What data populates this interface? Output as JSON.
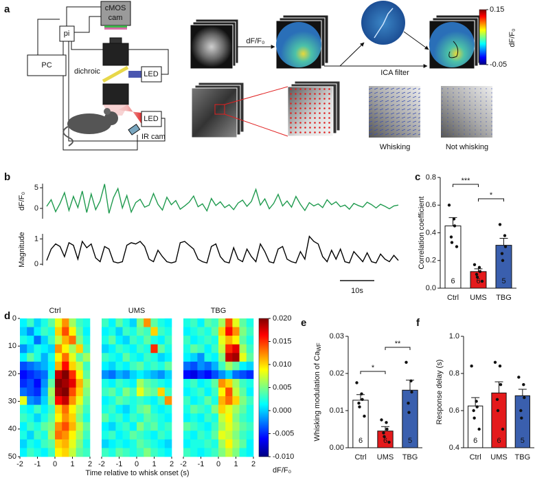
{
  "panel_labels": [
    "a",
    "b",
    "c",
    "d",
    "e",
    "f"
  ],
  "setup": {
    "pc": "PC",
    "pi": "pi",
    "camera_lines": [
      "cMOS",
      "cam"
    ],
    "dichroic": "dichroic",
    "led_blue": "LED",
    "led_red": "LED",
    "ir_camera": "IR cam"
  },
  "pipeline": {
    "df_label": "dF/F₀",
    "ica_label": "ICA filter",
    "whisking": "Whisking",
    "not_whisking": "Not whisking",
    "colorbar": {
      "lim": [
        -0.05,
        0.15
      ],
      "ticks": [
        0.15,
        -0.05
      ],
      "label": "dF/F₀"
    }
  },
  "chart_data": [
    {
      "type": "line",
      "ylabel": "dF/F₀",
      "color": "#1f9a4e",
      "ylim": [
        -2.5,
        6
      ],
      "yticks": [
        0,
        5
      ],
      "values": [
        0.5,
        2.1,
        -0.8,
        1.2,
        3.8,
        -0.5,
        2.9,
        0.2,
        4.2,
        -1.0,
        3.5,
        -0.3,
        1.8,
        5.9,
        -1.2,
        2.6,
        4.8,
        0.1,
        3.1,
        -0.9,
        1.4,
        2.2,
        0.3,
        0.8,
        3.6,
        1.0,
        -0.4,
        2.7,
        0.9,
        1.9,
        -0.2,
        0.6,
        1.5,
        3.0,
        0.4,
        1.1,
        -0.6,
        2.4,
        0.7,
        1.6,
        0.2,
        0.9,
        -0.3,
        1.3,
        2.0,
        0.5,
        1.7,
        4.6,
        0.8,
        2.3,
        -0.1,
        1.2,
        3.4,
        0.6,
        1.8,
        0.3,
        2.9,
        1.0,
        -0.5,
        1.4,
        0.6,
        1.1,
        0.2,
        2.1,
        0.9,
        1.6,
        0.4,
        0.8,
        -0.2,
        1.2,
        0.7,
        0.3,
        1.5,
        0.9,
        0.1,
        1.0,
        0.5,
        -0.1,
        0.6,
        0.8
      ]
    },
    {
      "type": "line",
      "ylabel": "Magnitude",
      "color": "#000000",
      "ylim": [
        -0.05,
        1.2
      ],
      "yticks": [
        0,
        1
      ],
      "scale_bar": "10s",
      "values": [
        0.15,
        0.6,
        0.8,
        0.7,
        0.3,
        0.85,
        0.75,
        0.2,
        0.9,
        0.65,
        0.8,
        0.25,
        0.1,
        0.7,
        0.6,
        0.1,
        0.05,
        0.1,
        0.75,
        0.85,
        0.8,
        0.9,
        0.7,
        0.2,
        0.1,
        0.55,
        0.3,
        0.1,
        0.05,
        0.1,
        0.85,
        0.9,
        0.75,
        0.6,
        0.2,
        0.1,
        0.05,
        0.7,
        0.8,
        0.3,
        0.1,
        0.05,
        0.65,
        0.2,
        0.1,
        0.6,
        0.3,
        0.1,
        0.8,
        0.5,
        0.1,
        0.05,
        0.6,
        0.7,
        0.2,
        0.1,
        0.05,
        0.5,
        0.2,
        1.1,
        0.9,
        0.8,
        0.3,
        0.1,
        0.55,
        0.2,
        0.6,
        0.1,
        0.05,
        0.5,
        0.3,
        0.1,
        0.45,
        0.1,
        0.05,
        0.4,
        0.2,
        0.1,
        0.35,
        0.15
      ]
    },
    {
      "type": "bar",
      "ylabel": "Correlation coefficient",
      "categories": [
        "Ctrl",
        "UMS",
        "TBG"
      ],
      "values": [
        0.45,
        0.12,
        0.31
      ],
      "errors": [
        0.06,
        0.02,
        0.05
      ],
      "colors": [
        "#ffffff",
        "#e41a1c",
        "#3a5fae"
      ],
      "points": [
        [
          0.6,
          0.5,
          0.45,
          0.37,
          0.33,
          0.3
        ],
        [
          0.17,
          0.15,
          0.12,
          0.1,
          0.08,
          0.05
        ],
        [
          0.46,
          0.38,
          0.3,
          0.25,
          0.2
        ]
      ],
      "n": [
        6,
        6,
        5
      ],
      "significance": [
        "***",
        "*"
      ],
      "ylim": [
        0,
        0.8
      ],
      "yticks": [
        {
          "value": 0,
          "label": "0.0"
        },
        0.2,
        0.4,
        0.6,
        0.8
      ]
    },
    {
      "type": "heatmap",
      "title": "Ctrl",
      "xlim": [
        -2,
        2
      ],
      "xticks": [
        -2,
        -1,
        0,
        1,
        2
      ],
      "ylim": [
        0,
        50
      ],
      "yticks": [
        0,
        10,
        20,
        30,
        40,
        50
      ],
      "values": [
        [
          0.001,
          0.003,
          0.0,
          0.002,
          0.004,
          0.008,
          0.012,
          0.006,
          0.003,
          0.002
        ],
        [
          0.0,
          -0.002,
          0.001,
          0.003,
          0.002,
          0.01,
          0.014,
          0.009,
          0.004,
          0.001
        ],
        [
          0.002,
          0.001,
          -0.003,
          0.0,
          0.003,
          0.007,
          0.011,
          0.013,
          0.005,
          0.002
        ],
        [
          -0.002,
          0.0,
          0.002,
          0.001,
          0.0,
          0.012,
          0.009,
          0.006,
          0.01,
          0.003
        ],
        [
          0.001,
          0.004,
          0.002,
          -0.001,
          0.002,
          0.009,
          0.013,
          0.008,
          0.004,
          0.006
        ],
        [
          -0.004,
          -0.003,
          -0.002,
          -0.001,
          0.001,
          0.011,
          0.016,
          0.01,
          0.007,
          0.003
        ],
        [
          -0.006,
          -0.005,
          -0.004,
          -0.003,
          0.002,
          0.018,
          0.02,
          0.015,
          0.009,
          0.004
        ],
        [
          -0.005,
          -0.004,
          -0.006,
          -0.002,
          0.004,
          0.02,
          0.019,
          0.017,
          0.011,
          0.006
        ],
        [
          -0.003,
          -0.004,
          -0.005,
          -0.001,
          0.006,
          0.019,
          0.02,
          0.014,
          0.01,
          0.005
        ],
        [
          0.008,
          -0.002,
          -0.003,
          0.0,
          0.005,
          0.016,
          0.018,
          0.012,
          0.008,
          0.004
        ],
        [
          0.002,
          0.001,
          0.003,
          0.001,
          0.003,
          0.01,
          0.013,
          0.009,
          0.006,
          0.003
        ],
        [
          0.003,
          0.002,
          0.0,
          0.002,
          0.004,
          0.009,
          0.012,
          0.01,
          0.005,
          0.002
        ],
        [
          0.001,
          0.003,
          0.002,
          0.004,
          0.005,
          0.012,
          0.014,
          0.011,
          0.007,
          0.004
        ],
        [
          0.002,
          0.0,
          0.003,
          0.002,
          0.006,
          0.013,
          0.012,
          0.009,
          0.006,
          0.003
        ],
        [
          0.0,
          0.002,
          0.001,
          0.003,
          0.004,
          0.01,
          0.011,
          0.008,
          0.005,
          0.002
        ],
        [
          0.001,
          0.003,
          0.002,
          0.001,
          0.003,
          0.009,
          0.01,
          0.007,
          0.004,
          0.003
        ]
      ]
    },
    {
      "type": "heatmap",
      "title": "UMS",
      "xlim": [
        -2,
        2
      ],
      "xticks": [
        -2,
        -1,
        0,
        1,
        2
      ],
      "ylim": [
        0,
        50
      ],
      "xlabel": "Time relative to whisk onset (s)",
      "values": [
        [
          0.003,
          0.001,
          0.004,
          0.002,
          0.0,
          0.005,
          0.012,
          0.004,
          0.002,
          0.001
        ],
        [
          0.001,
          0.002,
          0.0,
          0.003,
          0.002,
          0.004,
          0.003,
          0.01,
          0.003,
          0.002
        ],
        [
          0.002,
          0.004,
          0.001,
          0.0,
          0.003,
          0.002,
          0.004,
          0.002,
          0.001,
          0.003
        ],
        [
          0.0,
          0.001,
          0.003,
          0.002,
          0.001,
          0.003,
          0.002,
          0.015,
          0.004,
          0.002
        ],
        [
          0.003,
          0.002,
          0.001,
          0.004,
          0.002,
          0.001,
          0.003,
          0.002,
          0.0,
          0.001
        ],
        [
          0.001,
          0.0,
          0.002,
          0.001,
          0.003,
          0.004,
          0.002,
          0.003,
          0.002,
          0.004
        ],
        [
          -0.002,
          -0.003,
          -0.001,
          -0.002,
          0.0,
          0.001,
          0.0,
          -0.001,
          -0.002,
          0.0
        ],
        [
          0.002,
          0.001,
          0.003,
          0.002,
          0.001,
          0.006,
          0.004,
          0.003,
          0.002,
          0.001
        ],
        [
          0.003,
          0.004,
          0.002,
          0.005,
          0.003,
          0.008,
          0.005,
          0.004,
          0.01,
          0.003
        ],
        [
          0.001,
          0.002,
          0.004,
          0.003,
          0.002,
          0.003,
          0.002,
          0.001,
          0.003,
          0.012
        ],
        [
          0.002,
          0.003,
          0.001,
          0.0,
          0.002,
          0.004,
          0.005,
          0.002,
          0.001,
          0.002
        ],
        [
          0.004,
          0.002,
          0.003,
          0.001,
          0.003,
          0.002,
          0.004,
          0.003,
          0.002,
          0.001
        ],
        [
          0.001,
          0.0,
          0.002,
          0.003,
          0.001,
          0.005,
          0.003,
          0.004,
          0.002,
          0.003
        ],
        [
          0.002,
          0.003,
          0.001,
          0.002,
          0.004,
          0.003,
          0.002,
          0.001,
          0.003,
          0.002
        ],
        [
          0.0,
          0.001,
          0.002,
          0.001,
          0.002,
          0.004,
          0.003,
          0.002,
          0.001,
          0.0
        ],
        [
          0.003,
          0.002,
          0.004,
          0.003,
          0.002,
          0.003,
          0.005,
          0.003,
          0.002,
          0.001
        ]
      ]
    },
    {
      "type": "heatmap",
      "title": "TBG",
      "xlim": [
        -2,
        2
      ],
      "xticks": [
        -2,
        -1,
        0,
        1,
        2
      ],
      "ylim": [
        0,
        50
      ],
      "clim": [
        -0.01,
        0.02
      ],
      "clabel": "dF/F₀",
      "cticks": [
        {
          "value": 0.02,
          "label": "0.020"
        },
        {
          "value": 0.015,
          "label": "0.015"
        },
        {
          "value": 0.01,
          "label": "0.010"
        },
        {
          "value": 0.005,
          "label": "0.005"
        },
        {
          "value": 0,
          "label": "0.000"
        },
        {
          "value": -0.005,
          "label": "-0.005"
        },
        {
          "value": -0.01,
          "label": "-0.010"
        }
      ],
      "values": [
        [
          0.002,
          0.003,
          0.001,
          0.004,
          0.003,
          0.006,
          0.014,
          0.008,
          0.004,
          0.002
        ],
        [
          0.001,
          0.002,
          0.003,
          0.002,
          0.004,
          0.01,
          0.016,
          0.012,
          0.005,
          0.003
        ],
        [
          0.003,
          0.001,
          0.002,
          0.003,
          0.002,
          0.008,
          0.011,
          0.009,
          0.004,
          0.002
        ],
        [
          0.002,
          0.004,
          0.003,
          0.001,
          0.003,
          0.007,
          0.015,
          0.017,
          0.006,
          0.003
        ],
        [
          0.001,
          0.0,
          -0.002,
          0.002,
          0.001,
          0.005,
          0.018,
          0.019,
          0.008,
          0.004
        ],
        [
          -0.003,
          -0.004,
          -0.002,
          -0.003,
          -0.001,
          0.003,
          0.006,
          0.004,
          0.001,
          0.0
        ],
        [
          -0.006,
          -0.007,
          -0.005,
          -0.006,
          -0.004,
          -0.002,
          0.0,
          -0.003,
          -0.004,
          -0.005
        ],
        [
          0.002,
          0.003,
          0.001,
          0.002,
          0.004,
          0.012,
          0.01,
          0.006,
          0.003,
          0.002
        ],
        [
          0.001,
          0.002,
          0.003,
          0.001,
          0.003,
          0.009,
          0.014,
          0.007,
          0.004,
          0.001
        ],
        [
          0.003,
          0.001,
          0.002,
          0.004,
          0.002,
          0.011,
          0.013,
          0.01,
          0.005,
          0.003
        ],
        [
          0.002,
          0.004,
          0.003,
          0.002,
          0.005,
          0.01,
          0.008,
          0.006,
          0.004,
          0.002
        ],
        [
          0.001,
          0.002,
          0.001,
          0.003,
          0.002,
          0.007,
          0.009,
          0.005,
          0.003,
          0.002
        ],
        [
          0.004,
          0.003,
          0.002,
          0.001,
          0.003,
          0.006,
          0.008,
          0.006,
          0.004,
          0.003
        ],
        [
          0.002,
          0.001,
          0.003,
          0.002,
          0.004,
          0.008,
          0.007,
          0.005,
          0.003,
          0.002
        ],
        [
          0.001,
          0.002,
          0.002,
          0.003,
          0.002,
          0.006,
          0.009,
          0.006,
          0.004,
          0.001
        ],
        [
          0.003,
          0.002,
          0.001,
          0.002,
          0.003,
          0.005,
          0.007,
          0.005,
          0.002,
          0.001
        ]
      ]
    },
    {
      "type": "bar",
      "ylabel": "Whisking modulation of Ca",
      "ylabel_sub": "WF",
      "categories": [
        "Ctrl",
        "UMS",
        "TBG"
      ],
      "values": [
        0.0128,
        0.0045,
        0.0155
      ],
      "errors": [
        0.0015,
        0.0012,
        0.0027
      ],
      "colors": [
        "#ffffff",
        "#e41a1c",
        "#3a5fae"
      ],
      "points": [
        [
          0.0175,
          0.0145,
          0.013,
          0.012,
          0.011,
          0.0085
        ],
        [
          0.0075,
          0.0068,
          0.005,
          0.004,
          0.003,
          0.0015
        ],
        [
          0.023,
          0.018,
          0.015,
          0.012,
          0.0095
        ]
      ],
      "n": [
        6,
        6,
        5
      ],
      "significance": [
        "*",
        "**"
      ],
      "ylim": [
        0,
        0.03
      ],
      "yticks": [
        {
          "value": 0,
          "label": "0.00"
        },
        {
          "value": 0.01,
          "label": "0.01"
        },
        {
          "value": 0.02,
          "label": "0.02"
        },
        {
          "value": 0.03,
          "label": "0.03"
        }
      ]
    },
    {
      "type": "bar",
      "ylabel": "Response delay (s)",
      "categories": [
        "Ctrl",
        "UMS",
        "TBG"
      ],
      "values": [
        0.625,
        0.695,
        0.68
      ],
      "errors": [
        0.045,
        0.06,
        0.035
      ],
      "colors": [
        "#ffffff",
        "#e41a1c",
        "#3a5fae"
      ],
      "points": [
        [
          0.84,
          0.65,
          0.62,
          0.6,
          0.56,
          0.5
        ],
        [
          0.86,
          0.84,
          0.74,
          0.66,
          0.6,
          0.5
        ],
        [
          0.78,
          0.74,
          0.67,
          0.6,
          0.56
        ]
      ],
      "n": [
        6,
        6,
        5
      ],
      "ylim": [
        0.4,
        1.0
      ],
      "yticks": [
        0.4,
        0.6,
        0.8,
        {
          "value": 1.0,
          "label": "1.0"
        }
      ]
    }
  ]
}
